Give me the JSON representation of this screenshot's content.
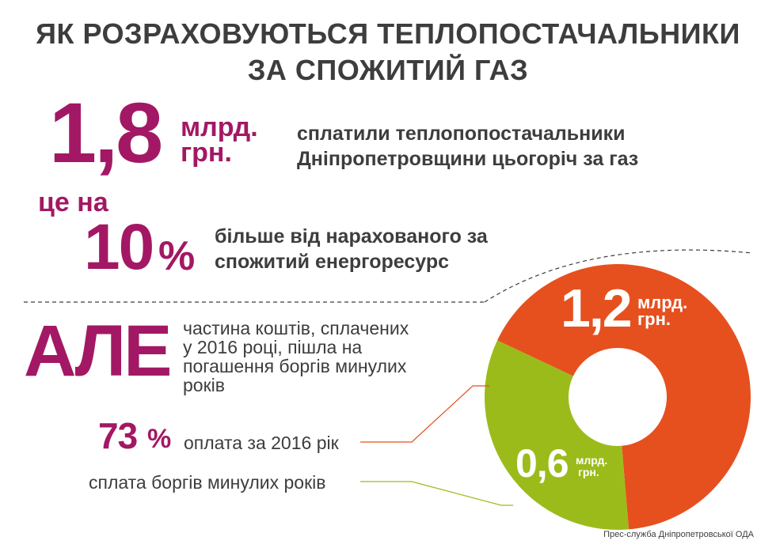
{
  "title": {
    "line1": "ЯК РОЗРАХОВУЮТЬСЯ ТЕПЛОПОСТАЧАЛЬНИКИ",
    "line2": "ЗА СПОЖИТИЙ ГАЗ"
  },
  "total": {
    "value": "1,8",
    "unit1": "млрд.",
    "unit2": "грн.",
    "desc1": "сплатили теплопопостачальники",
    "desc2": "Дніпропетровщини цьогоріч за газ"
  },
  "excess": {
    "intro": "це на",
    "value": "10",
    "pct": "%",
    "desc1": "більше від нарахованого за",
    "desc2": "спожитий енергоресурс"
  },
  "but": {
    "word": "АЛЕ",
    "text1": "частина коштів, сплачених",
    "text2": "у 2016 році,  пішла на",
    "text3": "погашення боргів минулих",
    "text4": "років"
  },
  "legend": {
    "current_value": "73",
    "current_pct": "%",
    "current_label": "оплата за 2016 рік",
    "debt_label": "сплата боргів минулих років"
  },
  "credit": "Прес-служба Дніпропетровської ОДА",
  "colors": {
    "purple": "#a31864",
    "orange": "#e6501f",
    "green": "#9bbb1b",
    "text": "#3d3d3d"
  },
  "chart_data": {
    "type": "pie",
    "title": "ЯК РОЗРАХОВУЮТЬСЯ ТЕПЛОПОСТАЧАЛЬНИКИ ЗА СПОЖИТИЙ ГАЗ",
    "unit": "млрд. грн.",
    "slices": [
      {
        "label": "оплата за 2016 рік",
        "value": 1.2,
        "value_label": "1,2",
        "unit1": "млрд.",
        "unit2": "грн.",
        "color": "#e6501f"
      },
      {
        "label": "сплата боргів минулих років",
        "value": 0.6,
        "value_label": "0,6",
        "unit1": "млрд.",
        "unit2": "грн.",
        "color": "#9bbb1b"
      }
    ]
  }
}
